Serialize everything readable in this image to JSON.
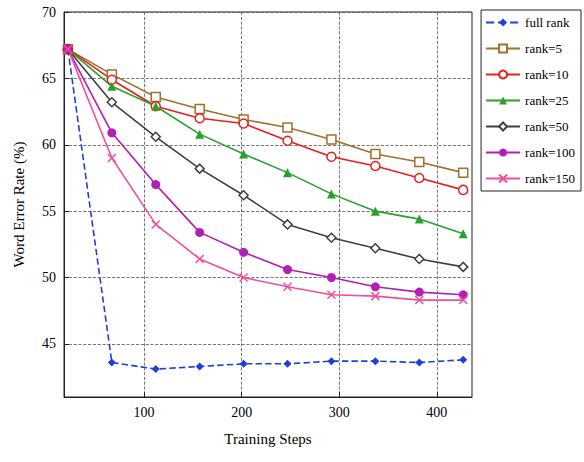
{
  "chart_data": {
    "type": "line",
    "x_label": "Training Steps",
    "y_label": "Word Error Rate (%)",
    "x": [
      22,
      67,
      112,
      157,
      202,
      247,
      292,
      337,
      382,
      427
    ],
    "xlim": [
      18,
      436
    ],
    "xticks": [
      100,
      200,
      300,
      400
    ],
    "ylim": [
      41,
      70
    ],
    "yticks": [
      45,
      50,
      55,
      60,
      65,
      70
    ],
    "grid": true,
    "legend": "right",
    "series": [
      {
        "name": "full rank",
        "color": "#1f3fdc",
        "marker": "diamond",
        "line_style": "dashed",
        "values": [
          67.2,
          43.6,
          43.1,
          43.3,
          43.5,
          43.5,
          43.7,
          43.7,
          43.6,
          43.8
        ]
      },
      {
        "name": "rank=5",
        "color": "#a0702a",
        "marker": "square-open",
        "line_style": "solid",
        "values": [
          67.2,
          65.3,
          63.6,
          62.7,
          61.9,
          61.3,
          60.4,
          59.3,
          58.7,
          57.9
        ]
      },
      {
        "name": "rank=10",
        "color": "#e8201c",
        "marker": "circle-open",
        "line_style": "solid",
        "values": [
          67.2,
          64.9,
          62.9,
          62.0,
          61.6,
          60.3,
          59.1,
          58.4,
          57.5,
          56.6
        ]
      },
      {
        "name": "rank=25",
        "color": "#2ca02c",
        "marker": "triangle",
        "line_style": "solid",
        "values": [
          67.2,
          64.4,
          62.9,
          60.8,
          59.3,
          57.9,
          56.3,
          55.0,
          54.4,
          53.3
        ]
      },
      {
        "name": "rank=50",
        "color": "#404040",
        "marker": "diamond-open",
        "line_style": "solid",
        "values": [
          67.2,
          63.2,
          60.6,
          58.2,
          56.2,
          54.0,
          53.0,
          52.2,
          51.4,
          50.8
        ]
      },
      {
        "name": "rank=100",
        "color": "#b31fb3",
        "marker": "circle",
        "line_style": "solid",
        "values": [
          67.2,
          60.9,
          57.0,
          53.4,
          51.9,
          50.6,
          50.0,
          49.3,
          48.9,
          48.7
        ]
      },
      {
        "name": "rank=150",
        "color": "#f0509a",
        "marker": "x",
        "line_style": "solid",
        "values": [
          67.2,
          59.0,
          54.0,
          51.4,
          50.0,
          49.3,
          48.7,
          48.6,
          48.3,
          48.3
        ]
      }
    ]
  }
}
